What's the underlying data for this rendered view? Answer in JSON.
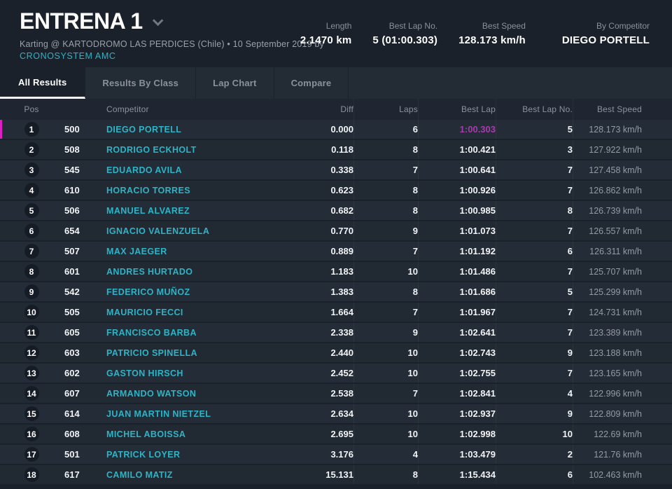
{
  "header": {
    "title": "ENTRENA 1",
    "subtitle": "Karting @ KARTODROMO LAS PERDICES (Chile) • 10 September 2019 by",
    "organizer": "CRONOSYSTEM AMC",
    "stats": [
      {
        "label": "Length",
        "value": "2.1470 km"
      },
      {
        "label": "Best Lap No.",
        "value": "5 (01:00.303)"
      },
      {
        "label": "Best Speed",
        "value": "128.173 km/h"
      },
      {
        "label": "By Competitor",
        "value": "DIEGO PORTELL"
      }
    ]
  },
  "tabs": [
    {
      "label": "All Results",
      "active": true
    },
    {
      "label": "Results By Class",
      "active": false
    },
    {
      "label": "Lap Chart",
      "active": false
    },
    {
      "label": "Compare",
      "active": false
    }
  ],
  "table": {
    "columns": [
      "Pos",
      "Competitor",
      "Diff",
      "Laps",
      "Best Lap",
      "Best Lap No.",
      "Best Speed"
    ],
    "rows": [
      {
        "pos": "1",
        "no": "500",
        "competitor": "DIEGO PORTELL",
        "diff": "0.000",
        "laps": "6",
        "best_lap": "1:00.303",
        "best_lap_no": "5",
        "best_speed": "128.173 km/h",
        "leader": true,
        "overall_best_lap": true
      },
      {
        "pos": "2",
        "no": "508",
        "competitor": "RODRIGO ECKHOLT",
        "diff": "0.118",
        "laps": "8",
        "best_lap": "1:00.421",
        "best_lap_no": "3",
        "best_speed": "127.922 km/h",
        "leader": false,
        "overall_best_lap": false
      },
      {
        "pos": "3",
        "no": "545",
        "competitor": "EDUARDO AVILA",
        "diff": "0.338",
        "laps": "7",
        "best_lap": "1:00.641",
        "best_lap_no": "7",
        "best_speed": "127.458 km/h",
        "leader": false,
        "overall_best_lap": false
      },
      {
        "pos": "4",
        "no": "610",
        "competitor": "HORACIO TORRES",
        "diff": "0.623",
        "laps": "8",
        "best_lap": "1:00.926",
        "best_lap_no": "7",
        "best_speed": "126.862 km/h",
        "leader": false,
        "overall_best_lap": false
      },
      {
        "pos": "5",
        "no": "506",
        "competitor": "MANUEL ALVAREZ",
        "diff": "0.682",
        "laps": "8",
        "best_lap": "1:00.985",
        "best_lap_no": "8",
        "best_speed": "126.739 km/h",
        "leader": false,
        "overall_best_lap": false
      },
      {
        "pos": "6",
        "no": "654",
        "competitor": "IGNACIO VALENZUELA",
        "diff": "0.770",
        "laps": "9",
        "best_lap": "1:01.073",
        "best_lap_no": "7",
        "best_speed": "126.557 km/h",
        "leader": false,
        "overall_best_lap": false
      },
      {
        "pos": "7",
        "no": "507",
        "competitor": "MAX JAEGER",
        "diff": "0.889",
        "laps": "7",
        "best_lap": "1:01.192",
        "best_lap_no": "6",
        "best_speed": "126.311 km/h",
        "leader": false,
        "overall_best_lap": false
      },
      {
        "pos": "8",
        "no": "601",
        "competitor": "ANDRES HURTADO",
        "diff": "1.183",
        "laps": "10",
        "best_lap": "1:01.486",
        "best_lap_no": "7",
        "best_speed": "125.707 km/h",
        "leader": false,
        "overall_best_lap": false
      },
      {
        "pos": "9",
        "no": "542",
        "competitor": "FEDERICO MUÑOZ",
        "diff": "1.383",
        "laps": "8",
        "best_lap": "1:01.686",
        "best_lap_no": "5",
        "best_speed": "125.299 km/h",
        "leader": false,
        "overall_best_lap": false
      },
      {
        "pos": "10",
        "no": "505",
        "competitor": "MAURICIO FECCI",
        "diff": "1.664",
        "laps": "7",
        "best_lap": "1:01.967",
        "best_lap_no": "7",
        "best_speed": "124.731 km/h",
        "leader": false,
        "overall_best_lap": false
      },
      {
        "pos": "11",
        "no": "605",
        "competitor": "FRANCISCO BARBA",
        "diff": "2.338",
        "laps": "9",
        "best_lap": "1:02.641",
        "best_lap_no": "7",
        "best_speed": "123.389 km/h",
        "leader": false,
        "overall_best_lap": false
      },
      {
        "pos": "12",
        "no": "603",
        "competitor": "PATRICIO SPINELLA",
        "diff": "2.440",
        "laps": "10",
        "best_lap": "1:02.743",
        "best_lap_no": "9",
        "best_speed": "123.188 km/h",
        "leader": false,
        "overall_best_lap": false
      },
      {
        "pos": "13",
        "no": "602",
        "competitor": "GASTON HIRSCH",
        "diff": "2.452",
        "laps": "10",
        "best_lap": "1:02.755",
        "best_lap_no": "7",
        "best_speed": "123.165 km/h",
        "leader": false,
        "overall_best_lap": false
      },
      {
        "pos": "14",
        "no": "607",
        "competitor": "ARMANDO WATSON",
        "diff": "2.538",
        "laps": "7",
        "best_lap": "1:02.841",
        "best_lap_no": "4",
        "best_speed": "122.996 km/h",
        "leader": false,
        "overall_best_lap": false
      },
      {
        "pos": "15",
        "no": "614",
        "competitor": "JUAN MARTIN NIETZEL",
        "diff": "2.634",
        "laps": "10",
        "best_lap": "1:02.937",
        "best_lap_no": "9",
        "best_speed": "122.809 km/h",
        "leader": false,
        "overall_best_lap": false
      },
      {
        "pos": "16",
        "no": "608",
        "competitor": "MICHEL ABOISSA",
        "diff": "2.695",
        "laps": "10",
        "best_lap": "1:02.998",
        "best_lap_no": "10",
        "best_speed": "122.69 km/h",
        "leader": false,
        "overall_best_lap": false
      },
      {
        "pos": "17",
        "no": "501",
        "competitor": "PATRICK LOYER",
        "diff": "3.176",
        "laps": "4",
        "best_lap": "1:03.479",
        "best_lap_no": "2",
        "best_speed": "121.76 km/h",
        "leader": false,
        "overall_best_lap": false
      },
      {
        "pos": "18",
        "no": "617",
        "competitor": "CAMILO MATIZ",
        "diff": "15.131",
        "laps": "8",
        "best_lap": "1:15.434",
        "best_lap_no": "6",
        "best_speed": "102.463 km/h",
        "leader": false,
        "overall_best_lap": false
      }
    ]
  },
  "colors": {
    "accent_cyan": "#2db4c6",
    "leader_magenta": "#e01ec8",
    "overall_best_purple": "#a93aae",
    "background": "#1a212b"
  }
}
